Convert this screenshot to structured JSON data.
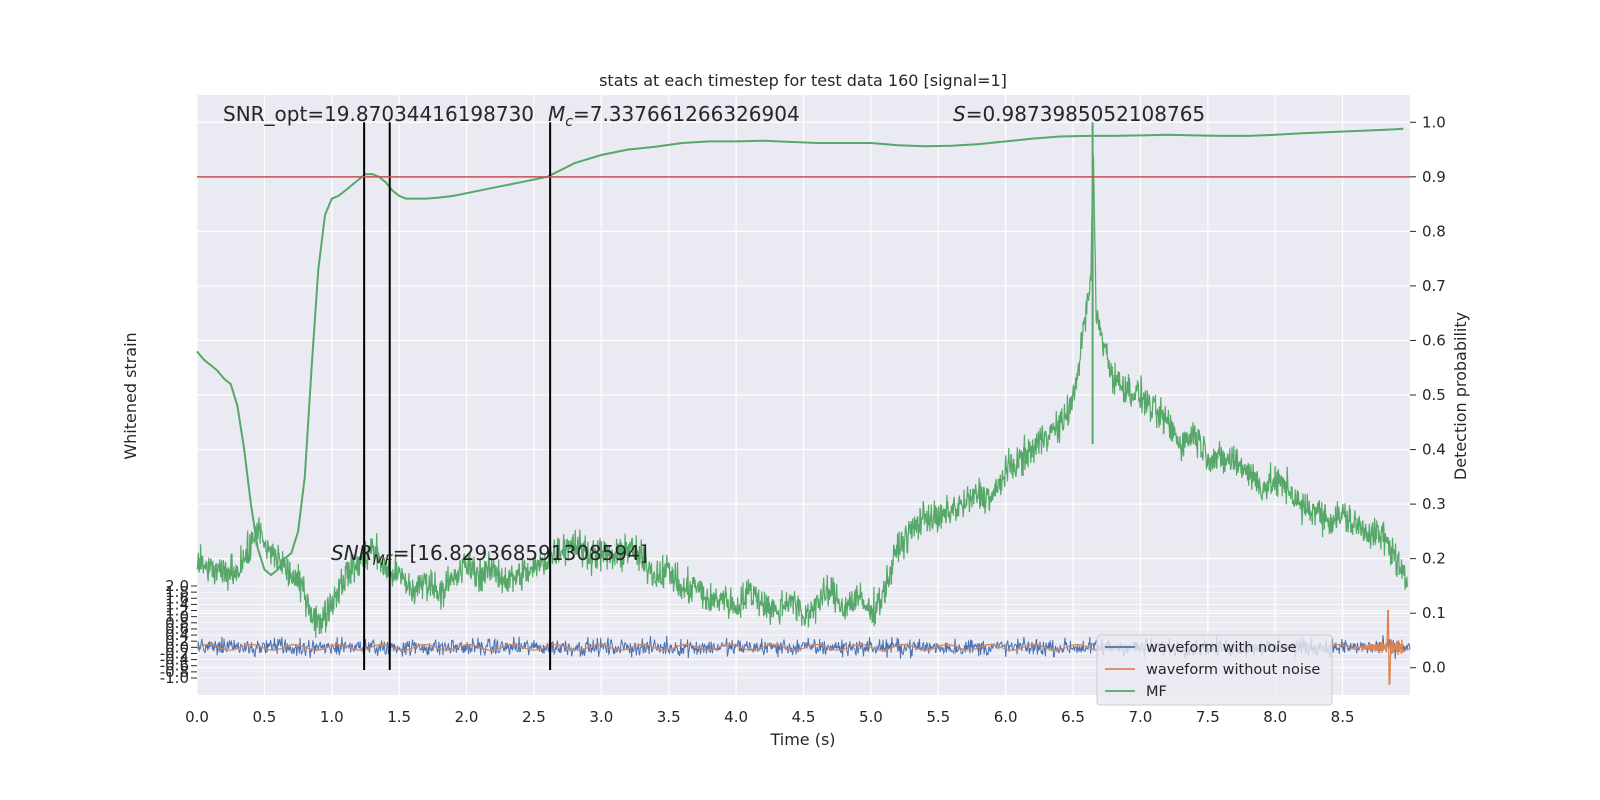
{
  "chart_data": {
    "type": "line",
    "title": "stats at each timestep for test data 160 [signal=1]",
    "xlabel": "Time (s)",
    "ylabel_left": "Whitened strain",
    "ylabel_right": "Detection probability",
    "xlim": [
      0.0,
      9.0
    ],
    "ylim_right": [
      -0.05,
      1.05
    ],
    "ylim_left": [
      -1.0,
      2.0
    ],
    "x_ticks": [
      "0.0",
      "0.5",
      "1.0",
      "1.5",
      "2.0",
      "2.5",
      "3.0",
      "3.5",
      "4.0",
      "4.5",
      "5.0",
      "5.5",
      "6.0",
      "6.5",
      "7.0",
      "7.5",
      "8.0",
      "8.5"
    ],
    "x_tick_values": [
      0,
      0.5,
      1,
      1.5,
      2,
      2.5,
      3,
      3.5,
      4,
      4.5,
      5,
      5.5,
      6,
      6.5,
      7,
      7.5,
      8,
      8.5
    ],
    "right_ticks": [
      "0.0",
      "0.1",
      "0.2",
      "0.3",
      "0.4",
      "0.5",
      "0.6",
      "0.7",
      "0.8",
      "0.9",
      "1.0"
    ],
    "right_tick_values": [
      0,
      0.1,
      0.2,
      0.3,
      0.4,
      0.5,
      0.6,
      0.7,
      0.8,
      0.9,
      1.0
    ],
    "left_ticks": [
      "2.0",
      "1.8",
      "1.6",
      "1.4",
      "1.2",
      "1.0",
      "0.8",
      "0.6",
      "0.4",
      "0.2",
      "0.0",
      "-0.2",
      "-0.4",
      "-0.6",
      "-0.8",
      "-1.0"
    ],
    "left_tick_values": [
      2.0,
      1.8,
      1.6,
      1.4,
      1.2,
      1.0,
      0.8,
      0.6,
      0.4,
      0.2,
      0.0,
      -0.2,
      -0.4,
      -0.6,
      -0.8,
      -1.0
    ],
    "threshold": 0.9,
    "vlines": [
      1.24,
      1.43,
      2.62
    ],
    "grid": true,
    "legend_placement": "lower-right",
    "legend": [
      "waveform with noise",
      "waveform without noise",
      "MF"
    ],
    "colors": {
      "noise": "#4c72b0",
      "clean": "#dd8452",
      "mf": "#55a868",
      "threshold": "#c44e52",
      "vline": "#000000",
      "plot_bg": "#eaeaf2",
      "grid": "#ffffff"
    },
    "annotations": {
      "snr_opt": "SNR_opt=19.87034416198730",
      "mc_symbol": "M",
      "mc_sub": "c",
      "mc_value": "=7.337661266326904",
      "s_symbol": "S",
      "s_value": "=0.9873985052108765",
      "snr_mf_symbol": "SNR",
      "snr_mf_sub": "MF",
      "snr_mf_value": "=[16.829368591308594]"
    },
    "series": [
      {
        "name": "Detection probability",
        "color": "#55a868",
        "x": [
          0.0,
          0.05,
          0.1,
          0.15,
          0.2,
          0.25,
          0.3,
          0.35,
          0.4,
          0.45,
          0.5,
          0.55,
          0.6,
          0.65,
          0.7,
          0.75,
          0.8,
          0.85,
          0.9,
          0.95,
          1.0,
          1.05,
          1.1,
          1.15,
          1.2,
          1.25,
          1.3,
          1.35,
          1.4,
          1.45,
          1.5,
          1.55,
          1.6,
          1.65,
          1.7,
          1.8,
          1.9,
          2.0,
          2.2,
          2.4,
          2.6,
          2.8,
          3.0,
          3.2,
          3.4,
          3.6,
          3.8,
          4.0,
          4.2,
          4.4,
          4.6,
          4.8,
          5.0,
          5.2,
          5.4,
          5.6,
          5.8,
          6.0,
          6.2,
          6.4,
          6.6,
          6.8,
          7.0,
          7.2,
          7.4,
          7.6,
          7.8,
          8.0,
          8.2,
          8.4,
          8.6,
          8.8,
          8.95
        ],
        "y": [
          0.58,
          0.565,
          0.555,
          0.545,
          0.53,
          0.52,
          0.48,
          0.4,
          0.3,
          0.22,
          0.18,
          0.17,
          0.18,
          0.2,
          0.21,
          0.25,
          0.35,
          0.55,
          0.73,
          0.83,
          0.86,
          0.865,
          0.875,
          0.885,
          0.895,
          0.905,
          0.905,
          0.9,
          0.89,
          0.875,
          0.865,
          0.86,
          0.86,
          0.86,
          0.86,
          0.862,
          0.865,
          0.87,
          0.88,
          0.89,
          0.9,
          0.925,
          0.94,
          0.95,
          0.955,
          0.962,
          0.965,
          0.965,
          0.966,
          0.964,
          0.962,
          0.962,
          0.962,
          0.958,
          0.956,
          0.957,
          0.96,
          0.965,
          0.97,
          0.974,
          0.975,
          0.975,
          0.976,
          0.977,
          0.976,
          0.975,
          0.975,
          0.977,
          0.98,
          0.982,
          0.984,
          0.986,
          0.988
        ]
      },
      {
        "name": "MF",
        "color": "#55a868",
        "x": [
          0.0,
          0.1,
          0.2,
          0.3,
          0.4,
          0.45,
          0.5,
          0.6,
          0.7,
          0.8,
          0.85,
          0.9,
          1.0,
          1.1,
          1.2,
          1.3,
          1.4,
          1.5,
          1.6,
          1.7,
          1.8,
          1.9,
          2.0,
          2.1,
          2.2,
          2.3,
          2.4,
          2.5,
          2.6,
          2.7,
          2.8,
          2.9,
          3.0,
          3.1,
          3.2,
          3.3,
          3.4,
          3.5,
          3.6,
          3.7,
          3.8,
          3.9,
          4.0,
          4.1,
          4.2,
          4.3,
          4.4,
          4.5,
          4.6,
          4.7,
          4.8,
          4.9,
          5.0,
          5.1,
          5.2,
          5.3,
          5.4,
          5.5,
          5.6,
          5.7,
          5.8,
          5.9,
          6.0,
          6.1,
          6.2,
          6.3,
          6.4,
          6.5,
          6.55,
          6.6,
          6.63,
          6.65,
          6.67,
          6.7,
          6.8,
          6.9,
          7.0,
          7.1,
          7.2,
          7.3,
          7.4,
          7.5,
          7.6,
          7.7,
          7.8,
          7.9,
          8.0,
          8.1,
          8.2,
          8.3,
          8.4,
          8.5,
          8.6,
          8.7,
          8.8,
          8.9,
          8.95
        ],
        "y": [
          0.19,
          0.18,
          0.17,
          0.18,
          0.22,
          0.26,
          0.22,
          0.2,
          0.17,
          0.14,
          0.1,
          0.08,
          0.12,
          0.17,
          0.19,
          0.22,
          0.18,
          0.17,
          0.14,
          0.16,
          0.14,
          0.16,
          0.19,
          0.17,
          0.18,
          0.16,
          0.17,
          0.18,
          0.2,
          0.22,
          0.23,
          0.21,
          0.21,
          0.2,
          0.22,
          0.2,
          0.17,
          0.18,
          0.14,
          0.15,
          0.12,
          0.13,
          0.11,
          0.14,
          0.12,
          0.1,
          0.13,
          0.09,
          0.12,
          0.14,
          0.11,
          0.13,
          0.1,
          0.14,
          0.22,
          0.25,
          0.28,
          0.27,
          0.29,
          0.3,
          0.32,
          0.31,
          0.36,
          0.38,
          0.4,
          0.43,
          0.44,
          0.49,
          0.57,
          0.66,
          0.7,
          0.96,
          0.65,
          0.62,
          0.53,
          0.51,
          0.5,
          0.47,
          0.45,
          0.41,
          0.43,
          0.39,
          0.38,
          0.38,
          0.36,
          0.33,
          0.34,
          0.33,
          0.29,
          0.29,
          0.27,
          0.28,
          0.26,
          0.25,
          0.24,
          0.2,
          0.16
        ]
      },
      {
        "name": "waveform with noise",
        "color": "#4c72b0",
        "x_range": [
          0.0,
          9.0
        ],
        "amplitude_note": "noisy strain around 0.0"
      },
      {
        "name": "waveform without noise",
        "color": "#dd8452",
        "x_range": [
          0.0,
          9.0
        ],
        "amplitude_note": "small oscillation around 0.0 with spike near 8.85 s"
      }
    ]
  }
}
